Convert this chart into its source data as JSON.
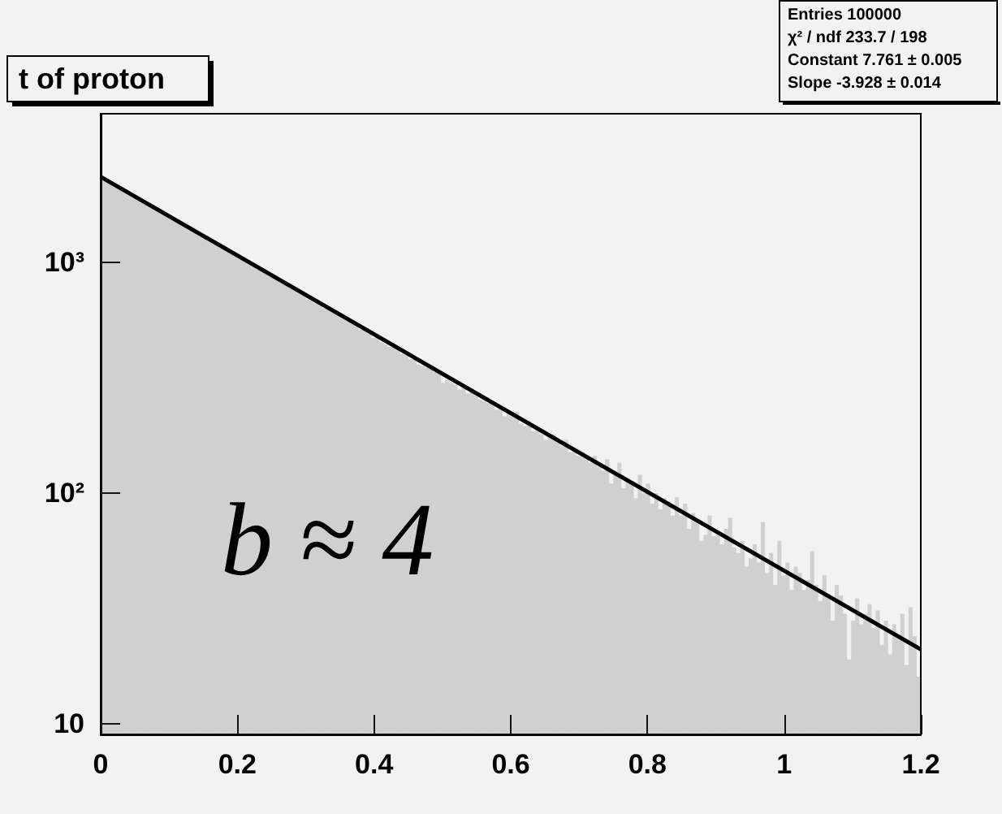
{
  "chart_data": {
    "type": "histogram",
    "title": "t of proton",
    "bins": [
      0,
      0.006,
      0.012,
      0.018,
      0.024,
      0.03,
      0.036,
      0.042,
      0.048,
      0.054,
      0.06,
      0.066,
      0.072,
      0.078,
      0.084,
      0.09,
      0.096,
      0.102,
      0.108,
      0.114,
      0.12,
      0.126,
      0.132,
      0.138,
      0.144,
      0.15,
      0.156,
      0.162,
      0.168,
      0.174,
      0.18,
      0.186,
      0.192,
      0.198,
      0.204,
      0.21,
      0.216,
      0.222,
      0.228,
      0.234,
      0.24,
      0.246,
      0.252,
      0.258,
      0.264,
      0.27,
      0.276,
      0.282,
      0.288,
      0.294,
      0.3,
      0.306,
      0.312,
      0.318,
      0.324,
      0.33,
      0.336,
      0.342,
      0.348,
      0.354,
      0.36,
      0.366,
      0.372,
      0.378,
      0.384,
      0.39,
      0.396,
      0.402,
      0.408,
      0.414,
      0.42,
      0.426,
      0.432,
      0.438,
      0.444,
      0.45,
      0.456,
      0.462,
      0.468,
      0.474,
      0.48,
      0.486,
      0.492,
      0.498,
      0.504,
      0.51,
      0.516,
      0.522,
      0.528,
      0.534,
      0.54,
      0.546,
      0.552,
      0.558,
      0.564,
      0.57,
      0.576,
      0.582,
      0.588,
      0.594,
      0.6,
      0.606,
      0.612,
      0.618,
      0.624,
      0.63,
      0.636,
      0.642,
      0.648,
      0.654,
      0.66,
      0.666,
      0.672,
      0.678,
      0.684,
      0.69,
      0.696,
      0.702,
      0.708,
      0.714,
      0.72,
      0.726,
      0.732,
      0.738,
      0.744,
      0.75,
      0.756,
      0.762,
      0.768,
      0.774,
      0.78,
      0.786,
      0.792,
      0.798,
      0.804,
      0.81,
      0.816,
      0.822,
      0.828,
      0.834,
      0.84,
      0.846,
      0.852,
      0.858,
      0.864,
      0.87,
      0.876,
      0.882,
      0.888,
      0.894,
      0.9,
      0.906,
      0.912,
      0.918,
      0.924,
      0.93,
      0.936,
      0.942,
      0.948,
      0.954,
      0.96,
      0.966,
      0.972,
      0.978,
      0.984,
      0.99,
      0.996,
      1.002,
      1.008,
      1.014,
      1.02,
      1.026,
      1.032,
      1.038,
      1.044,
      1.05,
      1.056,
      1.062,
      1.068,
      1.074,
      1.08,
      1.086,
      1.092,
      1.098,
      1.104,
      1.11,
      1.116,
      1.122,
      1.128,
      1.134,
      1.14,
      1.146,
      1.152,
      1.158,
      1.164,
      1.17,
      1.176,
      1.182,
      1.188,
      1.194,
      1.2
    ],
    "series": [
      {
        "color": "#555555",
        "values": [
          2330,
          2260,
          2215,
          2170,
          2110,
          2080,
          2010,
          1975,
          1930,
          1880,
          1845,
          1790,
          1745,
          1720,
          1660,
          1630,
          1600,
          1545,
          1520,
          1470,
          1460,
          1410,
          1395,
          1340,
          1300,
          1290,
          1240,
          1225,
          1190,
          1150,
          1130,
          1125,
          1085,
          1050,
          1040,
          1000,
          985,
          960,
          930,
          915,
          900,
          870,
          860,
          830,
          815,
          800,
          770,
          760,
          740,
          730,
          690,
          700,
          680,
          655,
          630,
          630,
          610,
          600,
          580,
          565,
          560,
          545,
          540,
          510,
          505,
          490,
          470,
          480,
          450,
          440,
          430,
          440,
          420,
          400,
          395,
          380,
          385,
          360,
          355,
          350,
          345,
          335,
          330,
          300,
          310,
          300,
          295,
          280,
          285,
          270,
          285,
          265,
          255,
          250,
          245,
          245,
          230,
          235,
          215,
          225,
          215,
          225,
          200,
          195,
          205,
          185,
          190,
          180,
          170,
          175,
          180,
          165,
          160,
          170,
          150,
          155,
          145,
          150,
          140,
          135,
          145,
          130,
          125,
          140,
          110,
          120,
          135,
          105,
          115,
          110,
          95,
          120,
          100,
          110,
          90,
          100,
          85,
          95,
          92,
          80,
          96,
          80,
          90,
          70,
          82,
          75,
          62,
          66,
          80,
          65,
          66,
          60,
          70,
          78,
          58,
          55,
          62,
          48,
          52,
          60,
          50,
          75,
          45,
          55,
          40,
          62,
          44,
          50,
          38,
          48,
          45,
          38,
          42,
          56,
          40,
          34,
          44,
          36,
          28,
          40,
          36,
          30,
          19,
          28,
          35,
          27,
          30,
          33,
          26,
          31,
          22,
          28,
          20,
          27,
          24,
          30,
          18,
          32,
          24,
          16
        ]
      },
      {
        "type": "line",
        "color": "#000000",
        "x": [
          0,
          1.2
        ],
        "values": [
          2346,
          21
        ]
      }
    ],
    "xlim": [
      0,
      1.2
    ],
    "xticks": [
      0,
      0.2,
      0.4,
      0.6,
      0.8,
      1,
      1.2
    ],
    "ylim": [
      9,
      4400
    ],
    "yticks": [
      {
        "value": 10,
        "label": "10"
      },
      {
        "value": 100,
        "label": "10²"
      },
      {
        "value": 1000,
        "label": "10³"
      }
    ],
    "log": "y",
    "grid": false,
    "annotations": [
      "Entries 100000",
      "χ² / ndf 233.7 / 198",
      "Constant 7.761 ± 0.005",
      "Slope -3.928 ± 0.014",
      "b ≈ 4"
    ]
  }
}
